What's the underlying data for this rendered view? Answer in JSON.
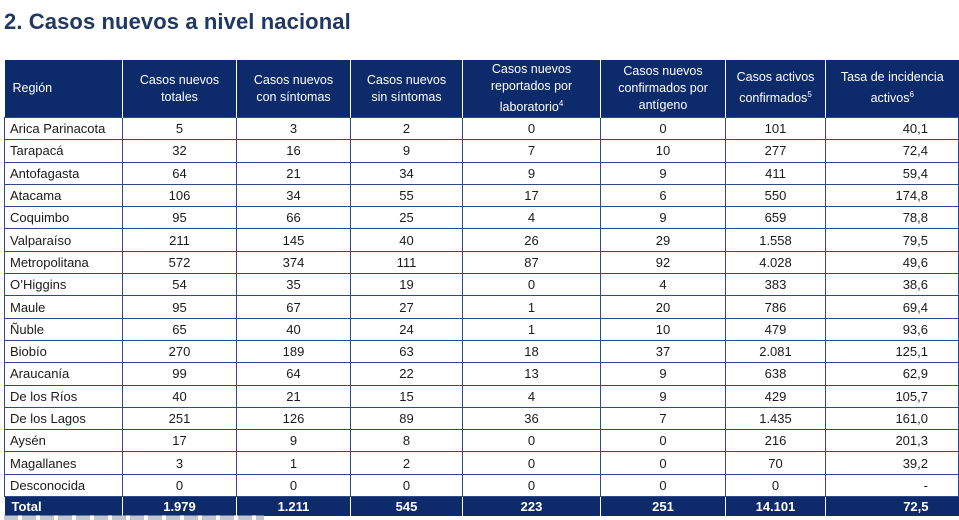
{
  "title": "2. Casos nuevos a nivel nacional",
  "table": {
    "headers": [
      {
        "lines": [
          "Región"
        ]
      },
      {
        "lines": [
          "Casos nuevos",
          "totales"
        ]
      },
      {
        "lines": [
          "Casos nuevos",
          "con síntomas"
        ]
      },
      {
        "lines": [
          "Casos nuevos",
          "sin síntomas"
        ]
      },
      {
        "lines": [
          "Casos nuevos",
          "reportados por",
          "laboratorio"
        ],
        "sup": "4"
      },
      {
        "lines": [
          "Casos nuevos",
          "confirmados por",
          "antígeno"
        ]
      },
      {
        "lines": [
          "Casos activos",
          "confirmados"
        ],
        "sup": "5"
      },
      {
        "lines": [
          "Tasa de incidencia",
          "activos"
        ],
        "sup": "6"
      }
    ],
    "rows": [
      [
        "Arica Parinacota",
        "5",
        "3",
        "2",
        "0",
        "0",
        "101",
        "40,1"
      ],
      [
        "Tarapacá",
        "32",
        "16",
        "9",
        "7",
        "10",
        "277",
        "72,4"
      ],
      [
        "Antofagasta",
        "64",
        "21",
        "34",
        "9",
        "9",
        "411",
        "59,4"
      ],
      [
        "Atacama",
        "106",
        "34",
        "55",
        "17",
        "6",
        "550",
        "174,8"
      ],
      [
        "Coquimbo",
        "95",
        "66",
        "25",
        "4",
        "9",
        "659",
        "78,8"
      ],
      [
        "Valparaíso",
        "211",
        "145",
        "40",
        "26",
        "29",
        "1.558",
        "79,5"
      ],
      [
        "Metropolitana",
        "572",
        "374",
        "111",
        "87",
        "92",
        "4.028",
        "49,6"
      ],
      [
        "O’Higgins",
        "54",
        "35",
        "19",
        "0",
        "4",
        "383",
        "38,6"
      ],
      [
        "Maule",
        "95",
        "67",
        "27",
        "1",
        "20",
        "786",
        "69,4"
      ],
      [
        "Ñuble",
        "65",
        "40",
        "24",
        "1",
        "10",
        "479",
        "93,6"
      ],
      [
        "Biobío",
        "270",
        "189",
        "63",
        "18",
        "37",
        "2.081",
        "125,1"
      ],
      [
        "Araucanía",
        "99",
        "64",
        "22",
        "13",
        "9",
        "638",
        "62,9"
      ],
      [
        "De los Ríos",
        "40",
        "21",
        "15",
        "4",
        "9",
        "429",
        "105,7"
      ],
      [
        "De los Lagos",
        "251",
        "126",
        "89",
        "36",
        "7",
        "1.435",
        "161,0"
      ],
      [
        "Aysén",
        "17",
        "9",
        "8",
        "0",
        "0",
        "216",
        "201,3"
      ],
      [
        "Magallanes",
        "3",
        "1",
        "2",
        "0",
        "0",
        "70",
        "39,2"
      ],
      [
        "Desconocida",
        "0",
        "0",
        "0",
        "0",
        "0",
        "0",
        "-"
      ]
    ],
    "total": [
      "Total",
      "1.979",
      "1.211",
      "545",
      "223",
      "251",
      "14.101",
      "72,5"
    ]
  },
  "colors": {
    "header_bg": "#0d2b6b",
    "title": "#1f3864",
    "grid": "#2f4a86"
  }
}
